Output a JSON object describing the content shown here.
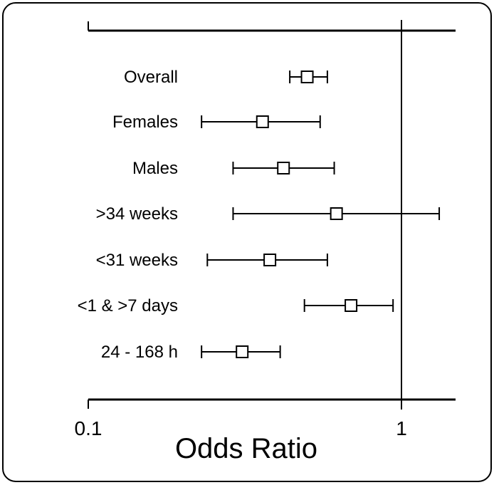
{
  "chart_data": {
    "type": "forest",
    "x_scale": "log",
    "xlim": [
      0.1,
      1.45
    ],
    "reference_line": 1,
    "xlabel": "Odds Ratio",
    "xticks": [
      0.1,
      1
    ],
    "xtick_labels": [
      "0.1",
      "1"
    ],
    "grid": false,
    "rows": [
      {
        "label": "Overall",
        "estimate": 0.5,
        "ci_low": 0.44,
        "ci_high": 0.58
      },
      {
        "label": "Females",
        "estimate": 0.36,
        "ci_low": 0.23,
        "ci_high": 0.55
      },
      {
        "label": "Males",
        "estimate": 0.42,
        "ci_low": 0.29,
        "ci_high": 0.61
      },
      {
        "label": ">34 weeks",
        "estimate": 0.62,
        "ci_low": 0.29,
        "ci_high": 1.32
      },
      {
        "label": "<31 weeks",
        "estimate": 0.38,
        "ci_low": 0.24,
        "ci_high": 0.58
      },
      {
        "label": "<1 & >7 days",
        "estimate": 0.69,
        "ci_low": 0.49,
        "ci_high": 0.94
      },
      {
        "label": "24 - 168 h",
        "estimate": 0.31,
        "ci_low": 0.23,
        "ci_high": 0.41
      }
    ]
  }
}
